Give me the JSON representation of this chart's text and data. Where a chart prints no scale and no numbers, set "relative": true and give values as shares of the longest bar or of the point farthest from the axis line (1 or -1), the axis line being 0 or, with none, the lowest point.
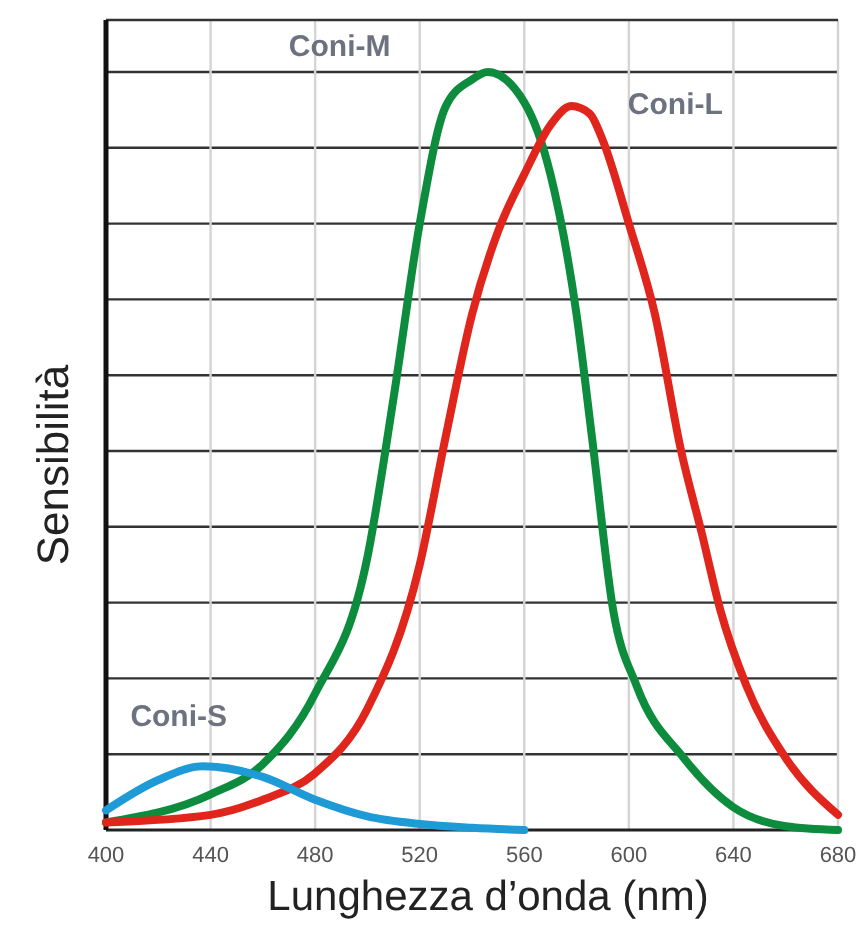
{
  "chart_data": {
    "type": "line",
    "relative": true,
    "xlabel": "Lunghezza d’onda (nm)",
    "ylabel": "Sensibilità",
    "xlim": [
      400,
      680
    ],
    "xticks": [
      400,
      440,
      480,
      520,
      560,
      600,
      640,
      680
    ],
    "grid": true,
    "marker": "none",
    "line_style": "solid",
    "series": [
      {
        "name": "Coni-M",
        "color": "#0c8c3c",
        "x": [
          400,
          440,
          460,
          480,
          500,
          510,
          520,
          530,
          540,
          546,
          560,
          570,
          580,
          586,
          594,
          603,
          621,
          640,
          660,
          680
        ],
        "values": [
          0.01,
          0.047,
          0.087,
          0.18,
          0.36,
          0.57,
          0.8,
          0.955,
          0.99,
          1,
          0.96,
          0.865,
          0.68,
          0.515,
          0.29,
          0.19,
          0.095,
          0.03,
          0.005,
          0
        ]
      },
      {
        "name": "Coni-L",
        "color": "#e0251d",
        "x": [
          400,
          440,
          460,
          480,
          500,
          520,
          530,
          540,
          550,
          560,
          570,
          578,
          585,
          590,
          600,
          610,
          620,
          628,
          635,
          645,
          660,
          680
        ],
        "values": [
          0.01,
          0.02,
          0.04,
          0.075,
          0.16,
          0.35,
          0.52,
          0.68,
          0.79,
          0.865,
          0.93,
          0.955,
          0.945,
          0.91,
          0.8,
          0.68,
          0.5,
          0.39,
          0.29,
          0.19,
          0.095,
          0.02
        ]
      },
      {
        "name": "Coni-S",
        "color": "#1e9ad6",
        "x": [
          400,
          420,
          437,
          460,
          480,
          500,
          520,
          540,
          560
        ],
        "values": [
          0.026,
          0.066,
          0.084,
          0.07,
          0.04,
          0.018,
          0.008,
          0.003,
          0
        ]
      }
    ]
  }
}
